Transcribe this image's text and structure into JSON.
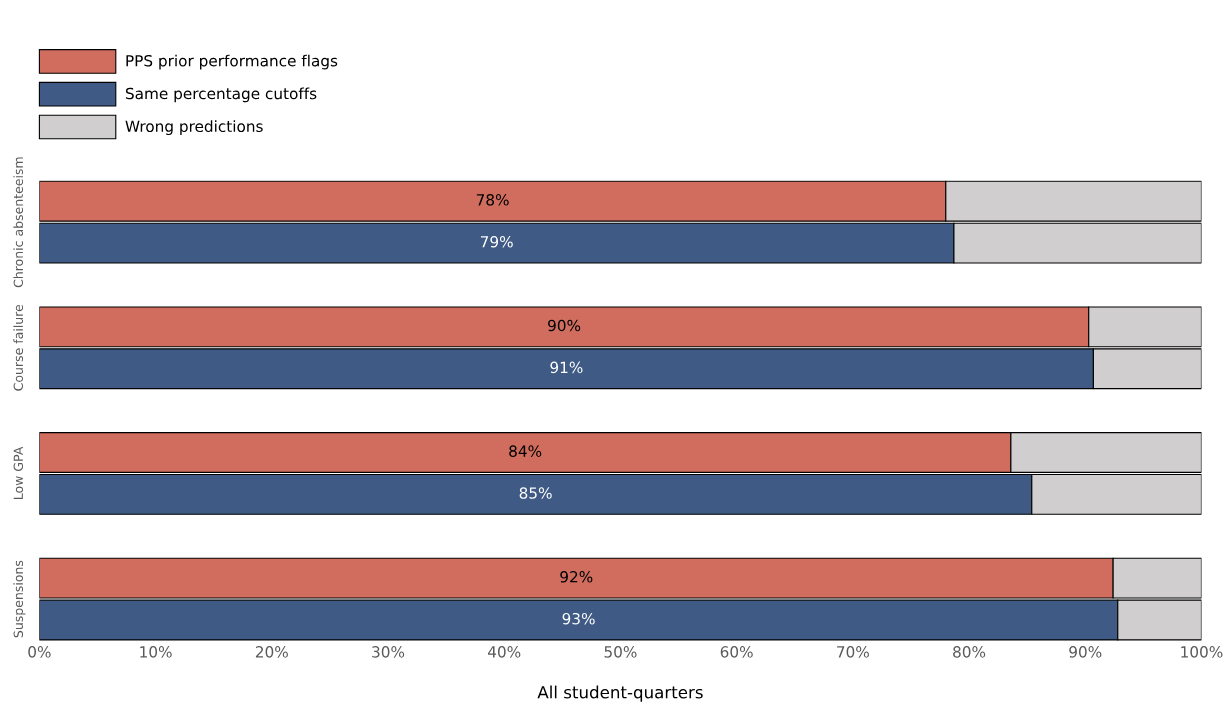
{
  "chart_data": {
    "type": "bar",
    "orientation": "horizontal",
    "stacked": true,
    "categories": [
      "Chronic absenteeism",
      null,
      null,
      "Course failure",
      null,
      null,
      "Low GPA",
      null,
      null,
      "Suspensions",
      null
    ],
    "series": [
      {
        "name": "PPS prior performance flags",
        "color": "#d06d5e",
        "values": [
          78.0,
          null,
          null,
          90.3,
          null,
          null,
          83.6,
          null,
          null,
          92.4,
          null
        ],
        "value_labels": [
          "78%",
          null,
          null,
          "90%",
          null,
          null,
          "84%",
          null,
          null,
          "92%",
          null
        ]
      },
      {
        "name": "Same percentage cutoffs",
        "color": "#3f5b85",
        "values": [
          null,
          78.7,
          null,
          null,
          90.7,
          null,
          null,
          85.4,
          null,
          null,
          92.8
        ],
        "value_labels": [
          null,
          "79%",
          null,
          null,
          "91%",
          null,
          null,
          "85%",
          null,
          null,
          "93%"
        ]
      },
      {
        "name": "Wrong predictions",
        "color": "#d0cece",
        "values": [
          22.0,
          21.3,
          null,
          9.7,
          9.3,
          null,
          16.4,
          14.6,
          null,
          7.6,
          7.2
        ]
      }
    ],
    "xlim": [
      0,
      100
    ],
    "xticks": [
      {
        "value": 0,
        "label": "0%"
      },
      {
        "value": 10,
        "label": "10%"
      },
      {
        "value": 20,
        "label": "20%"
      },
      {
        "value": 30,
        "label": "30%"
      },
      {
        "value": 40,
        "label": "40%"
      },
      {
        "value": 50,
        "label": "50%"
      },
      {
        "value": 60,
        "label": "60%"
      },
      {
        "value": 70,
        "label": "70%"
      },
      {
        "value": 80,
        "label": "80%"
      },
      {
        "value": 90,
        "label": "90%"
      },
      {
        "value": 100,
        "label": "100%"
      }
    ],
    "xlabel": "All student-quarters",
    "grid": false,
    "legend": "top left"
  }
}
